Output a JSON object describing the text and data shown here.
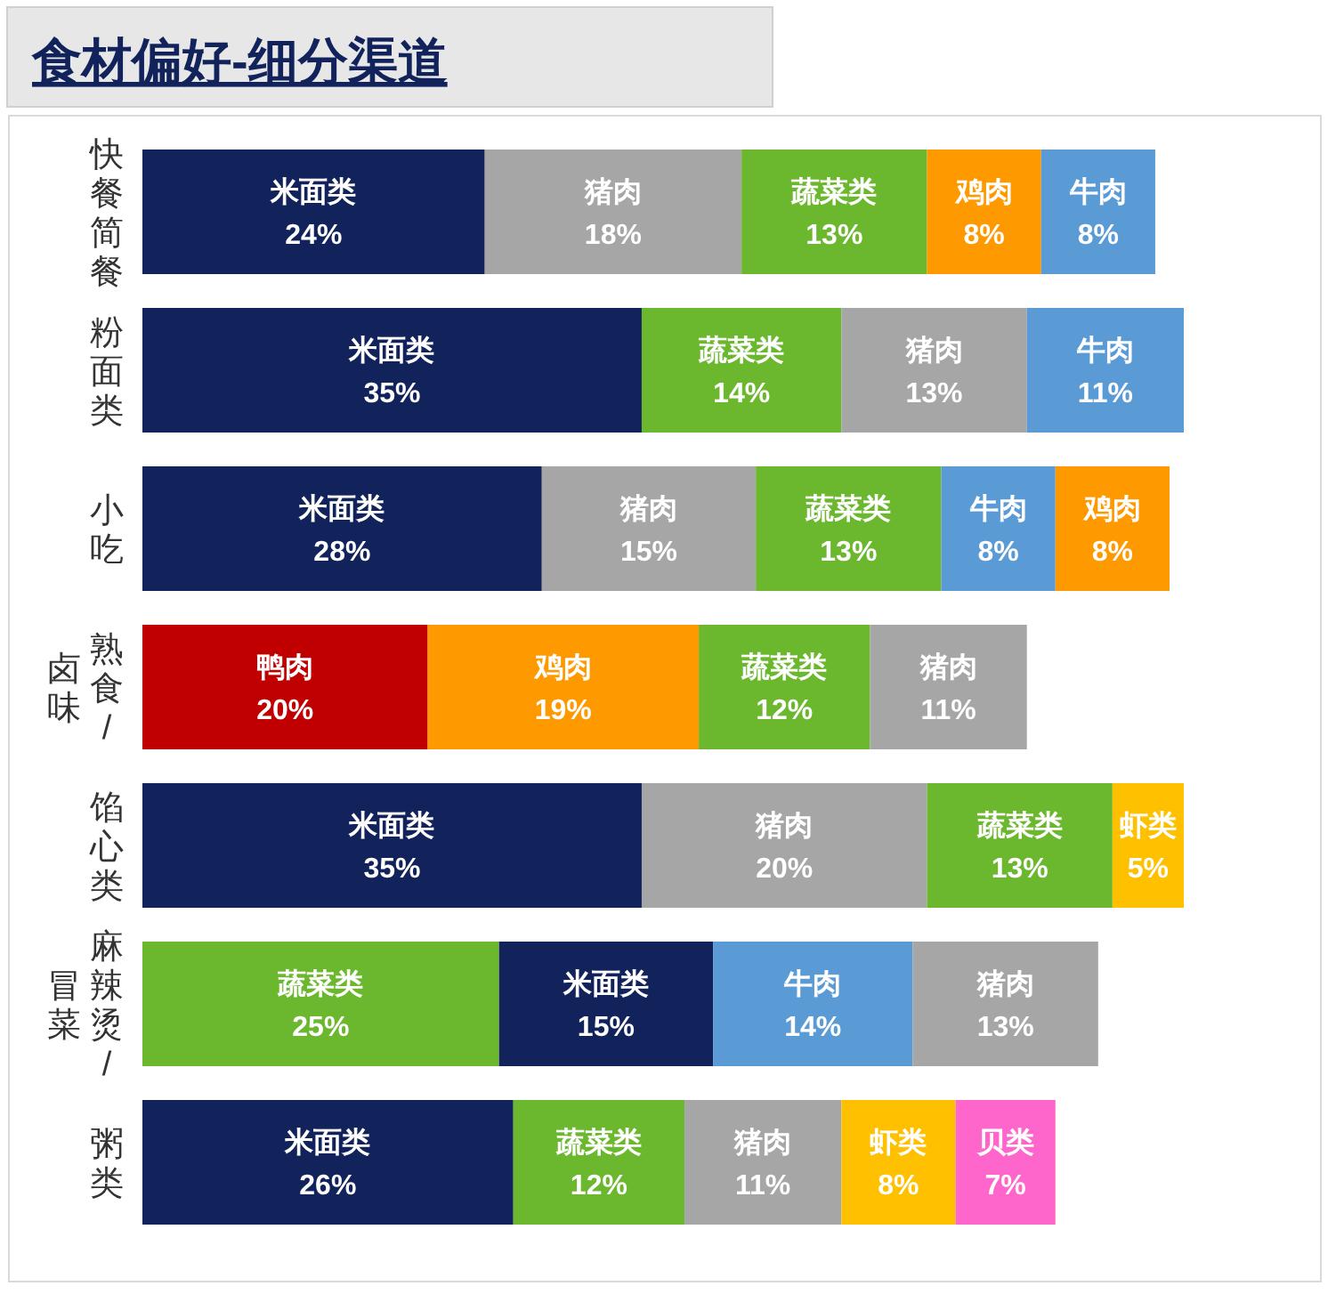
{
  "chart_data": {
    "type": "bar",
    "orientation": "horizontal",
    "stacked": true,
    "title": "食材偏好-细分渠道",
    "tick_labels": "y",
    "categories": [
      "快餐简餐",
      "粉面类",
      "小吃",
      "熟食/卤味",
      "馅心类",
      "麻辣烫/冒菜",
      "粥类"
    ],
    "series": [
      {
        "values": [
          24,
          35,
          28,
          20,
          35,
          25,
          26
        ],
        "colors": [
          "#12235b",
          "#12235b",
          "#12235b",
          "#c00000",
          "#12235b",
          "#6bb82e",
          "#12235b"
        ],
        "value_labels": [
          "米面类\n24%",
          "米面类\n35%",
          "米面类\n28%",
          "鸭肉\n20%",
          "米面类\n35%",
          "蔬菜类\n25%",
          "米面类\n26%"
        ]
      },
      {
        "values": [
          18,
          14,
          15,
          19,
          20,
          15,
          12
        ],
        "colors": [
          "#a6a6a6",
          "#6bb82e",
          "#a6a6a6",
          "#ff9900",
          "#a6a6a6",
          "#12235b",
          "#6bb82e"
        ],
        "value_labels": [
          "猪肉\n18%",
          "蔬菜类\n14%",
          "猪肉\n15%",
          "鸡肉\n19%",
          "猪肉\n20%",
          "米面类\n15%",
          "蔬菜类\n12%"
        ]
      },
      {
        "values": [
          13,
          13,
          13,
          12,
          13,
          14,
          11
        ],
        "colors": [
          "#6bb82e",
          "#a6a6a6",
          "#6bb82e",
          "#6bb82e",
          "#6bb82e",
          "#5b9bd5",
          "#a6a6a6"
        ],
        "value_labels": [
          "蔬菜类\n13%",
          "猪肉\n13%",
          "蔬菜类\n13%",
          "蔬菜类\n12%",
          "蔬菜类\n13%",
          "牛肉\n14%",
          "猪肉\n11%"
        ]
      },
      {
        "values": [
          8,
          11,
          8,
          11,
          5,
          13,
          8
        ],
        "colors": [
          "#ff9900",
          "#5b9bd5",
          "#5b9bd5",
          "#a6a6a6",
          "#ffc000",
          "#a6a6a6",
          "#ffc000"
        ],
        "value_labels": [
          "鸡肉\n8%",
          "牛肉\n11%",
          "牛肉\n8%",
          "猪肉\n11%",
          "虾类\n5%",
          "猪肉\n13%",
          "虾类\n8%"
        ]
      },
      {
        "values": [
          8,
          null,
          8,
          null,
          null,
          null,
          7
        ],
        "colors": [
          "#5b9bd5",
          null,
          "#ff9900",
          null,
          null,
          null,
          "#ff66cc"
        ],
        "value_labels": [
          "牛肉\n8%",
          null,
          "鸡肉\n8%",
          null,
          null,
          null,
          "贝类\n7%"
        ]
      }
    ]
  }
}
